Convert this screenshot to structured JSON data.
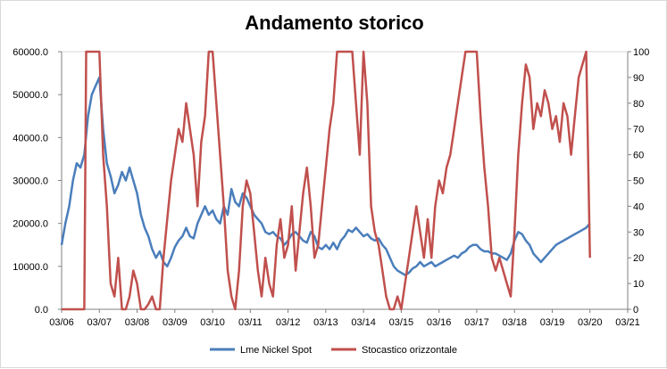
{
  "chart_data": {
    "type": "line",
    "title": "Andamento storico",
    "legend_position": "bottom",
    "grid": true,
    "x": {
      "range": [
        "03/06",
        "03/21"
      ],
      "tick_labels": [
        "03/06",
        "03/07",
        "03/08",
        "03/09",
        "03/10",
        "03/11",
        "03/12",
        "03/13",
        "03/14",
        "03/15",
        "03/16",
        "03/17",
        "03/18",
        "03/19",
        "03/20",
        "03/21"
      ]
    },
    "y_left": {
      "range": [
        0,
        60000
      ],
      "tick_labels": [
        "0.0",
        "10000.0",
        "20000.0",
        "30000.0",
        "40000.0",
        "50000.0",
        "60000.0"
      ]
    },
    "y_right": {
      "range": [
        0,
        100
      ],
      "tick_labels": [
        "0",
        "10",
        "20",
        "30",
        "40",
        "50",
        "60",
        "70",
        "80",
        "90",
        "100"
      ]
    },
    "series": [
      {
        "name": "Lme Nickel Spot",
        "axis": "left",
        "color": "#4a7ebb",
        "points": [
          [
            0.0,
            15000
          ],
          [
            0.1,
            20000
          ],
          [
            0.2,
            24000
          ],
          [
            0.3,
            30000
          ],
          [
            0.4,
            34000
          ],
          [
            0.5,
            33000
          ],
          [
            0.6,
            36000
          ],
          [
            0.7,
            45000
          ],
          [
            0.8,
            50000
          ],
          [
            0.9,
            52000
          ],
          [
            1.0,
            54000
          ],
          [
            1.1,
            42000
          ],
          [
            1.2,
            34000
          ],
          [
            1.3,
            31000
          ],
          [
            1.4,
            27000
          ],
          [
            1.5,
            29000
          ],
          [
            1.6,
            32000
          ],
          [
            1.7,
            30000
          ],
          [
            1.8,
            33000
          ],
          [
            1.9,
            30000
          ],
          [
            2.0,
            27000
          ],
          [
            2.1,
            22000
          ],
          [
            2.2,
            19000
          ],
          [
            2.3,
            17000
          ],
          [
            2.4,
            14000
          ],
          [
            2.5,
            12000
          ],
          [
            2.6,
            13500
          ],
          [
            2.7,
            11000
          ],
          [
            2.8,
            10000
          ],
          [
            2.9,
            12000
          ],
          [
            3.0,
            14500
          ],
          [
            3.1,
            16000
          ],
          [
            3.2,
            17000
          ],
          [
            3.3,
            19000
          ],
          [
            3.4,
            17000
          ],
          [
            3.5,
            16500
          ],
          [
            3.6,
            20000
          ],
          [
            3.7,
            22000
          ],
          [
            3.8,
            24000
          ],
          [
            3.9,
            22000
          ],
          [
            4.0,
            23000
          ],
          [
            4.1,
            21000
          ],
          [
            4.2,
            20000
          ],
          [
            4.3,
            24000
          ],
          [
            4.4,
            22000
          ],
          [
            4.5,
            28000
          ],
          [
            4.6,
            25000
          ],
          [
            4.7,
            24000
          ],
          [
            4.8,
            27000
          ],
          [
            4.9,
            26000
          ],
          [
            5.0,
            24000
          ],
          [
            5.1,
            22000
          ],
          [
            5.2,
            21000
          ],
          [
            5.3,
            20000
          ],
          [
            5.4,
            18000
          ],
          [
            5.5,
            17500
          ],
          [
            5.6,
            18000
          ],
          [
            5.7,
            17000
          ],
          [
            5.8,
            16500
          ],
          [
            5.9,
            15000
          ],
          [
            6.0,
            16000
          ],
          [
            6.1,
            17500
          ],
          [
            6.2,
            18000
          ],
          [
            6.3,
            17000
          ],
          [
            6.4,
            16000
          ],
          [
            6.5,
            15500
          ],
          [
            6.6,
            18000
          ],
          [
            6.7,
            17000
          ],
          [
            6.8,
            14500
          ],
          [
            6.9,
            14000
          ],
          [
            7.0,
            15000
          ],
          [
            7.1,
            14000
          ],
          [
            7.2,
            15500
          ],
          [
            7.3,
            14000
          ],
          [
            7.4,
            16000
          ],
          [
            7.5,
            17000
          ],
          [
            7.6,
            18500
          ],
          [
            7.7,
            18000
          ],
          [
            7.8,
            19000
          ],
          [
            7.9,
            18000
          ],
          [
            8.0,
            17000
          ],
          [
            8.1,
            17500
          ],
          [
            8.2,
            16500
          ],
          [
            8.3,
            16000
          ],
          [
            8.4,
            16500
          ],
          [
            8.5,
            15000
          ],
          [
            8.6,
            14000
          ],
          [
            8.7,
            12000
          ],
          [
            8.8,
            10000
          ],
          [
            8.9,
            9000
          ],
          [
            9.0,
            8500
          ],
          [
            9.1,
            8000
          ],
          [
            9.2,
            8500
          ],
          [
            9.3,
            9500
          ],
          [
            9.4,
            10000
          ],
          [
            9.5,
            11000
          ],
          [
            9.6,
            10000
          ],
          [
            9.7,
            10500
          ],
          [
            9.8,
            11000
          ],
          [
            9.9,
            10000
          ],
          [
            10.0,
            10500
          ],
          [
            10.1,
            11000
          ],
          [
            10.2,
            11500
          ],
          [
            10.3,
            12000
          ],
          [
            10.4,
            12500
          ],
          [
            10.5,
            12000
          ],
          [
            10.6,
            13000
          ],
          [
            10.7,
            13500
          ],
          [
            10.8,
            14500
          ],
          [
            10.9,
            15000
          ],
          [
            11.0,
            15000
          ],
          [
            11.1,
            14000
          ],
          [
            11.2,
            13500
          ],
          [
            11.3,
            13500
          ],
          [
            11.4,
            13000
          ],
          [
            11.5,
            13000
          ],
          [
            11.6,
            12500
          ],
          [
            11.7,
            12000
          ],
          [
            11.8,
            11500
          ],
          [
            11.9,
            13000
          ],
          [
            12.0,
            16000
          ],
          [
            12.1,
            18000
          ],
          [
            12.2,
            17500
          ],
          [
            12.3,
            16000
          ],
          [
            12.4,
            15000
          ],
          [
            12.5,
            13000
          ],
          [
            12.6,
            12000
          ],
          [
            12.7,
            11000
          ],
          [
            12.8,
            12000
          ],
          [
            12.9,
            13000
          ],
          [
            13.0,
            14000
          ],
          [
            13.1,
            15000
          ],
          [
            13.2,
            15500
          ],
          [
            13.3,
            16000
          ],
          [
            13.4,
            16500
          ],
          [
            13.5,
            17000
          ],
          [
            13.6,
            17500
          ],
          [
            13.7,
            18000
          ],
          [
            13.8,
            18500
          ],
          [
            13.9,
            19000
          ],
          [
            14.0,
            20000
          ]
        ]
      },
      {
        "name": "Stocastico orizzontale",
        "axis": "right",
        "color": "#c0504d",
        "points": [
          [
            0.0,
            0
          ],
          [
            0.3,
            0
          ],
          [
            0.6,
            0
          ],
          [
            0.65,
            100
          ],
          [
            0.8,
            100
          ],
          [
            1.0,
            100
          ],
          [
            1.05,
            80
          ],
          [
            1.1,
            60
          ],
          [
            1.2,
            40
          ],
          [
            1.3,
            10
          ],
          [
            1.4,
            5
          ],
          [
            1.5,
            20
          ],
          [
            1.6,
            0
          ],
          [
            1.7,
            0
          ],
          [
            1.8,
            5
          ],
          [
            1.9,
            15
          ],
          [
            2.0,
            10
          ],
          [
            2.1,
            0
          ],
          [
            2.2,
            0
          ],
          [
            2.3,
            2
          ],
          [
            2.4,
            5
          ],
          [
            2.5,
            0
          ],
          [
            2.6,
            0
          ],
          [
            2.7,
            20
          ],
          [
            2.8,
            35
          ],
          [
            2.9,
            50
          ],
          [
            3.0,
            60
          ],
          [
            3.1,
            70
          ],
          [
            3.2,
            65
          ],
          [
            3.3,
            80
          ],
          [
            3.4,
            70
          ],
          [
            3.5,
            60
          ],
          [
            3.6,
            40
          ],
          [
            3.7,
            65
          ],
          [
            3.8,
            75
          ],
          [
            3.9,
            100
          ],
          [
            4.0,
            100
          ],
          [
            4.1,
            80
          ],
          [
            4.2,
            60
          ],
          [
            4.3,
            40
          ],
          [
            4.4,
            15
          ],
          [
            4.5,
            5
          ],
          [
            4.6,
            0
          ],
          [
            4.7,
            15
          ],
          [
            4.8,
            40
          ],
          [
            4.9,
            50
          ],
          [
            5.0,
            45
          ],
          [
            5.1,
            30
          ],
          [
            5.2,
            15
          ],
          [
            5.3,
            5
          ],
          [
            5.4,
            20
          ],
          [
            5.5,
            10
          ],
          [
            5.6,
            5
          ],
          [
            5.7,
            25
          ],
          [
            5.8,
            35
          ],
          [
            5.9,
            20
          ],
          [
            6.0,
            25
          ],
          [
            6.1,
            40
          ],
          [
            6.2,
            15
          ],
          [
            6.3,
            30
          ],
          [
            6.4,
            45
          ],
          [
            6.5,
            55
          ],
          [
            6.6,
            40
          ],
          [
            6.7,
            20
          ],
          [
            6.8,
            25
          ],
          [
            6.9,
            40
          ],
          [
            7.0,
            55
          ],
          [
            7.1,
            70
          ],
          [
            7.2,
            80
          ],
          [
            7.3,
            100
          ],
          [
            7.4,
            100
          ],
          [
            7.6,
            100
          ],
          [
            7.7,
            100
          ],
          [
            7.8,
            80
          ],
          [
            7.9,
            60
          ],
          [
            8.0,
            100
          ],
          [
            8.1,
            80
          ],
          [
            8.2,
            40
          ],
          [
            8.3,
            30
          ],
          [
            8.4,
            25
          ],
          [
            8.5,
            15
          ],
          [
            8.6,
            5
          ],
          [
            8.7,
            0
          ],
          [
            8.8,
            0
          ],
          [
            8.9,
            5
          ],
          [
            9.0,
            0
          ],
          [
            9.1,
            10
          ],
          [
            9.2,
            20
          ],
          [
            9.3,
            30
          ],
          [
            9.4,
            40
          ],
          [
            9.5,
            30
          ],
          [
            9.6,
            20
          ],
          [
            9.7,
            35
          ],
          [
            9.8,
            20
          ],
          [
            9.9,
            40
          ],
          [
            10.0,
            50
          ],
          [
            10.1,
            45
          ],
          [
            10.2,
            55
          ],
          [
            10.3,
            60
          ],
          [
            10.4,
            70
          ],
          [
            10.5,
            80
          ],
          [
            10.6,
            90
          ],
          [
            10.7,
            100
          ],
          [
            10.8,
            100
          ],
          [
            11.0,
            100
          ],
          [
            11.1,
            75
          ],
          [
            11.2,
            55
          ],
          [
            11.3,
            40
          ],
          [
            11.4,
            20
          ],
          [
            11.5,
            15
          ],
          [
            11.6,
            20
          ],
          [
            11.7,
            15
          ],
          [
            11.8,
            10
          ],
          [
            11.9,
            5
          ],
          [
            12.0,
            30
          ],
          [
            12.1,
            60
          ],
          [
            12.2,
            80
          ],
          [
            12.3,
            95
          ],
          [
            12.4,
            90
          ],
          [
            12.5,
            70
          ],
          [
            12.6,
            80
          ],
          [
            12.7,
            75
          ],
          [
            12.8,
            85
          ],
          [
            12.9,
            80
          ],
          [
            13.0,
            70
          ],
          [
            13.1,
            75
          ],
          [
            13.2,
            65
          ],
          [
            13.3,
            80
          ],
          [
            13.4,
            75
          ],
          [
            13.5,
            60
          ],
          [
            13.6,
            75
          ],
          [
            13.7,
            90
          ],
          [
            13.8,
            95
          ],
          [
            13.9,
            100
          ],
          [
            14.0,
            20
          ]
        ]
      }
    ]
  }
}
